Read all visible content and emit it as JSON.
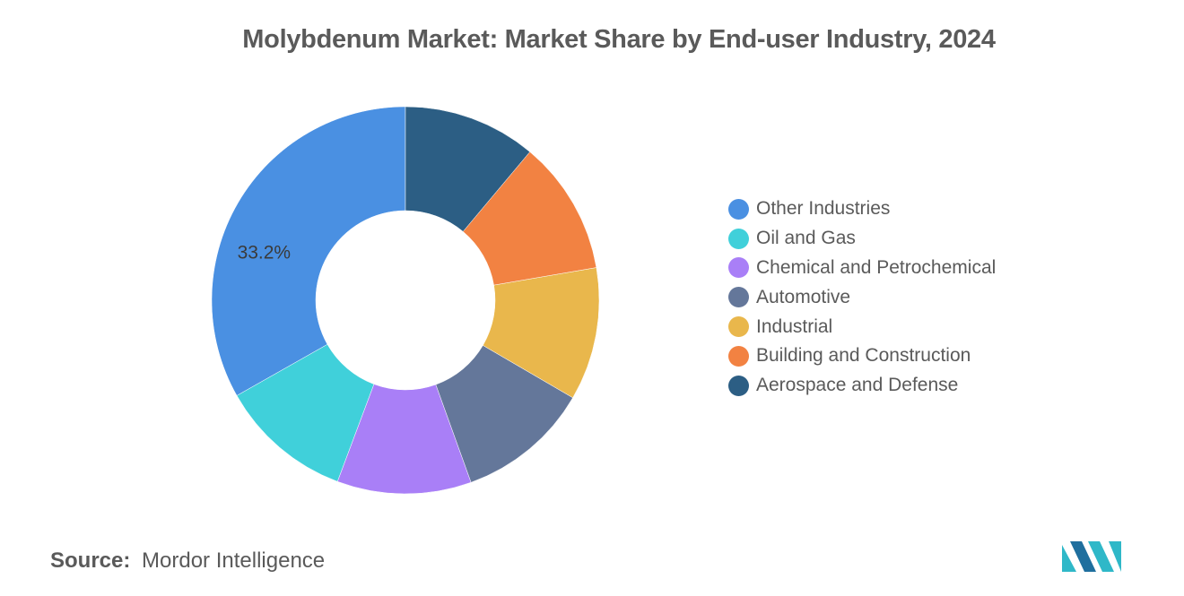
{
  "chart_data": {
    "type": "pie",
    "variant": "donut",
    "title": "Molybdenum Market: Market Share by End-user Industry, 2024",
    "categories": [
      "Other Industries",
      "Oil and Gas",
      "Chemical and Petrochemical",
      "Automotive",
      "Industrial",
      "Building and Construction",
      "Aerospace and Defense"
    ],
    "values": [
      33.2,
      11.1,
      11.2,
      11.1,
      11.1,
      11.2,
      11.1
    ],
    "colors": [
      "#4a90e2",
      "#40d0da",
      "#a97ff7",
      "#64779a",
      "#e9b74c",
      "#f28242",
      "#2c5e84"
    ],
    "data_labels": [
      {
        "category": "Other Industries",
        "text": "33.2%"
      }
    ],
    "start_angle_deg": 0,
    "direction": "counterclockwise-from-top",
    "legend_position": "right"
  },
  "source": {
    "label": "Source:",
    "name": "Mordor Intelligence"
  },
  "logo": {
    "icon": "mordor-intelligence-logo-icon",
    "colors": [
      "#2fb8c8",
      "#1f6f9e"
    ]
  }
}
